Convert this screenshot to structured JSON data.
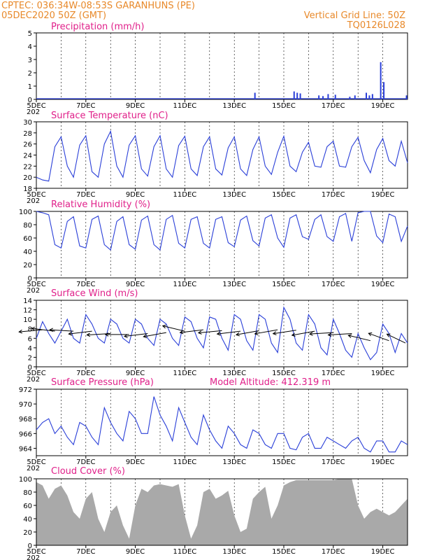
{
  "header": {
    "line1_left": "CPTEC:   036:34W-08:53S   GARANHUNS (PE)",
    "line2_left": "05DEC2020 50Z (GMT)",
    "line1_right": "Vertical Grid Line: 50Z",
    "line2_right": "TQ0126L028"
  },
  "colors": {
    "header": "#e8892a",
    "title": "#e0208a",
    "series": "#2a3fd8",
    "cloud": "#a9a9a9",
    "arrow": "#000000"
  },
  "x_axis": {
    "start": "2020-12-05",
    "end": "2020-12-20",
    "tick_labels": [
      "5DEC",
      "7DEC",
      "9DEC",
      "11DEC",
      "13DEC",
      "15DEC",
      "17DEC",
      "19DEC"
    ],
    "tick_dates": [
      "2020-12-05",
      "2020-12-07",
      "2020-12-09",
      "2020-12-11",
      "2020-12-13",
      "2020-12-15",
      "2020-12-17",
      "2020-12-19"
    ],
    "truncated_year_label": "202"
  },
  "chart_data": [
    {
      "type": "bar",
      "title": "Precipitation (mm/h)",
      "ylim": [
        0,
        5
      ],
      "yticks": [
        0,
        1,
        2,
        3,
        4,
        5
      ],
      "grid": "vertical dashed",
      "x": [
        "2020-12-13 20:00",
        "2020-12-15 10:00",
        "2020-12-15 13:00",
        "2020-12-15 16:00",
        "2020-12-16 10:00",
        "2020-12-16 14:00",
        "2020-12-16 19:00",
        "2020-12-17 02:00",
        "2020-12-17 16:00",
        "2020-12-17 21:00",
        "2020-12-18 08:00",
        "2020-12-18 11:00",
        "2020-12-18 14:00",
        "2020-12-18 22:00",
        "2020-12-19 01:00",
        "2020-12-19 23:00"
      ],
      "values": [
        0.5,
        0.6,
        0.5,
        0.45,
        0.3,
        0.25,
        0.4,
        0.35,
        0.2,
        0.3,
        0.5,
        0.3,
        0.4,
        2.8,
        1.3,
        0.3
      ]
    },
    {
      "type": "line",
      "title": "Surface Temperature (nC)",
      "ylim": [
        18,
        30
      ],
      "yticks": [
        18,
        20,
        22,
        24,
        26,
        28,
        30
      ],
      "x": [
        "2020-12-05 00:00",
        "2020-12-05 06:00",
        "2020-12-05 12:00",
        "2020-12-05 18:00",
        "2020-12-06 00:00",
        "2020-12-06 06:00",
        "2020-12-06 12:00",
        "2020-12-06 18:00",
        "2020-12-07 00:00",
        "2020-12-07 06:00",
        "2020-12-07 12:00",
        "2020-12-07 18:00",
        "2020-12-08 00:00",
        "2020-12-08 06:00",
        "2020-12-08 12:00",
        "2020-12-08 18:00",
        "2020-12-09 00:00",
        "2020-12-09 06:00",
        "2020-12-09 12:00",
        "2020-12-09 18:00",
        "2020-12-10 00:00",
        "2020-12-10 06:00",
        "2020-12-10 12:00",
        "2020-12-10 18:00",
        "2020-12-11 00:00",
        "2020-12-11 06:00",
        "2020-12-11 12:00",
        "2020-12-11 18:00",
        "2020-12-12 00:00",
        "2020-12-12 06:00",
        "2020-12-12 12:00",
        "2020-12-12 18:00",
        "2020-12-13 00:00",
        "2020-12-13 06:00",
        "2020-12-13 12:00",
        "2020-12-13 18:00",
        "2020-12-14 00:00",
        "2020-12-14 06:00",
        "2020-12-14 12:00",
        "2020-12-14 18:00",
        "2020-12-15 00:00",
        "2020-12-15 06:00",
        "2020-12-15 12:00",
        "2020-12-15 18:00",
        "2020-12-16 00:00",
        "2020-12-16 06:00",
        "2020-12-16 12:00",
        "2020-12-16 18:00",
        "2020-12-17 00:00",
        "2020-12-17 06:00",
        "2020-12-17 12:00",
        "2020-12-17 18:00",
        "2020-12-18 00:00",
        "2020-12-18 06:00",
        "2020-12-18 12:00",
        "2020-12-18 18:00",
        "2020-12-19 00:00",
        "2020-12-19 06:00",
        "2020-12-19 12:00",
        "2020-12-19 18:00",
        "2020-12-20 00:00"
      ],
      "values": [
        20,
        19.5,
        19.3,
        25.5,
        27.3,
        22,
        20,
        25.8,
        27.5,
        21,
        20,
        26,
        28.3,
        22,
        20,
        25.8,
        27.5,
        21.5,
        20.2,
        25.5,
        27.5,
        21.5,
        20,
        25.7,
        27.4,
        21.5,
        20.3,
        25.5,
        27.3,
        21.5,
        20.4,
        25.3,
        27.3,
        21.5,
        20.3,
        25,
        27.3,
        22,
        20.5,
        24.5,
        27.4,
        22,
        21,
        24.5,
        26.3,
        22,
        21.8,
        25.5,
        26.5,
        22,
        21.8,
        25.5,
        27.2,
        23,
        20.8,
        25,
        27,
        23,
        22,
        26.5,
        22.6
      ]
    },
    {
      "type": "line",
      "title": "Relative Humidity (%)",
      "ylim": [
        0,
        100
      ],
      "yticks": [
        0,
        20,
        40,
        60,
        80,
        100
      ],
      "x": [
        "2020-12-05 00:00",
        "2020-12-05 06:00",
        "2020-12-05 12:00",
        "2020-12-05 18:00",
        "2020-12-06 00:00",
        "2020-12-06 06:00",
        "2020-12-06 12:00",
        "2020-12-06 18:00",
        "2020-12-07 00:00",
        "2020-12-07 06:00",
        "2020-12-07 12:00",
        "2020-12-07 18:00",
        "2020-12-08 00:00",
        "2020-12-08 06:00",
        "2020-12-08 12:00",
        "2020-12-08 18:00",
        "2020-12-09 00:00",
        "2020-12-09 06:00",
        "2020-12-09 12:00",
        "2020-12-09 18:00",
        "2020-12-10 00:00",
        "2020-12-10 06:00",
        "2020-12-10 12:00",
        "2020-12-10 18:00",
        "2020-12-11 00:00",
        "2020-12-11 06:00",
        "2020-12-11 12:00",
        "2020-12-11 18:00",
        "2020-12-12 00:00",
        "2020-12-12 06:00",
        "2020-12-12 12:00",
        "2020-12-12 18:00",
        "2020-12-13 00:00",
        "2020-12-13 06:00",
        "2020-12-13 12:00",
        "2020-12-13 18:00",
        "2020-12-14 00:00",
        "2020-12-14 06:00",
        "2020-12-14 12:00",
        "2020-12-14 18:00",
        "2020-12-15 00:00",
        "2020-12-15 06:00",
        "2020-12-15 12:00",
        "2020-12-15 18:00",
        "2020-12-16 00:00",
        "2020-12-16 06:00",
        "2020-12-16 12:00",
        "2020-12-16 18:00",
        "2020-12-17 00:00",
        "2020-12-17 06:00",
        "2020-12-17 12:00",
        "2020-12-17 18:00",
        "2020-12-18 00:00",
        "2020-12-18 06:00",
        "2020-12-18 12:00",
        "2020-12-18 18:00",
        "2020-12-19 00:00",
        "2020-12-19 06:00",
        "2020-12-19 12:00",
        "2020-12-19 18:00",
        "2020-12-20 00:00"
      ],
      "values": [
        100,
        98,
        95,
        50,
        45,
        85,
        92,
        48,
        45,
        88,
        93,
        50,
        42,
        85,
        92,
        50,
        43,
        87,
        93,
        50,
        42,
        88,
        94,
        52,
        45,
        88,
        92,
        52,
        45,
        88,
        92,
        53,
        47,
        87,
        93,
        56,
        48,
        90,
        95,
        60,
        46,
        90,
        95,
        62,
        58,
        88,
        95,
        62,
        55,
        92,
        97,
        55,
        98,
        100,
        100,
        63,
        53,
        96,
        92,
        55,
        78
      ]
    },
    {
      "type": "line",
      "title": "Surface Wind (m/s)",
      "ylim": [
        0,
        14
      ],
      "yticks": [
        0,
        2,
        4,
        6,
        8,
        10,
        12,
        14
      ],
      "x": [
        "2020-12-05 00:00",
        "2020-12-05 06:00",
        "2020-12-05 12:00",
        "2020-12-05 18:00",
        "2020-12-06 00:00",
        "2020-12-06 06:00",
        "2020-12-06 12:00",
        "2020-12-06 18:00",
        "2020-12-07 00:00",
        "2020-12-07 06:00",
        "2020-12-07 12:00",
        "2020-12-07 18:00",
        "2020-12-08 00:00",
        "2020-12-08 06:00",
        "2020-12-08 12:00",
        "2020-12-08 18:00",
        "2020-12-09 00:00",
        "2020-12-09 06:00",
        "2020-12-09 12:00",
        "2020-12-09 18:00",
        "2020-12-10 00:00",
        "2020-12-10 06:00",
        "2020-12-10 12:00",
        "2020-12-10 18:00",
        "2020-12-11 00:00",
        "2020-12-11 06:00",
        "2020-12-11 12:00",
        "2020-12-11 18:00",
        "2020-12-12 00:00",
        "2020-12-12 06:00",
        "2020-12-12 12:00",
        "2020-12-12 18:00",
        "2020-12-13 00:00",
        "2020-12-13 06:00",
        "2020-12-13 12:00",
        "2020-12-13 18:00",
        "2020-12-14 00:00",
        "2020-12-14 06:00",
        "2020-12-14 12:00",
        "2020-12-14 18:00",
        "2020-12-15 00:00",
        "2020-12-15 06:00",
        "2020-12-15 12:00",
        "2020-12-15 18:00",
        "2020-12-16 00:00",
        "2020-12-16 06:00",
        "2020-12-16 12:00",
        "2020-12-16 18:00",
        "2020-12-17 00:00",
        "2020-12-17 06:00",
        "2020-12-17 12:00",
        "2020-12-17 18:00",
        "2020-12-18 00:00",
        "2020-12-18 06:00",
        "2020-12-18 12:00",
        "2020-12-18 18:00",
        "2020-12-19 00:00",
        "2020-12-19 06:00",
        "2020-12-19 12:00",
        "2020-12-19 18:00",
        "2020-12-20 00:00"
      ],
      "values": [
        6,
        9.5,
        7,
        5,
        7.5,
        10,
        6,
        5,
        11,
        9,
        6,
        5,
        10,
        9,
        6,
        5,
        10,
        9,
        6,
        4.5,
        10,
        9,
        6,
        4.5,
        10.5,
        9.5,
        6,
        4,
        10.5,
        10,
        6,
        3.5,
        11,
        10,
        5.5,
        3.5,
        11,
        10,
        5,
        3,
        12.5,
        10,
        5,
        3.5,
        11,
        9,
        4,
        2.5,
        10,
        7,
        3.5,
        2,
        7,
        4,
        1.5,
        3,
        9,
        7,
        3,
        7,
        5
      ],
      "arrows": [
        {
          "x": "2020-12-05 06:00",
          "speed": 7.8,
          "dir_x": -1,
          "dir_y": 0.15
        },
        {
          "x": "2020-12-05 18:00",
          "speed": 7.5,
          "dir_x": -1,
          "dir_y": -0.2
        },
        {
          "x": "2020-12-06 12:00",
          "speed": 7.5,
          "dir_x": -1,
          "dir_y": -0.1
        },
        {
          "x": "2020-12-07 06:00",
          "speed": 7.5,
          "dir_x": -1,
          "dir_y": 0.2
        },
        {
          "x": "2020-12-08 00:00",
          "speed": 7.0,
          "dir_x": -1,
          "dir_y": 0.1
        },
        {
          "x": "2020-12-08 18:00",
          "speed": 6.8,
          "dir_x": -1,
          "dir_y": 0
        },
        {
          "x": "2020-12-09 12:00",
          "speed": 7.0,
          "dir_x": -1,
          "dir_y": 0.2
        },
        {
          "x": "2020-12-10 06:00",
          "speed": 7.2,
          "dir_x": -1,
          "dir_y": 0.3
        },
        {
          "x": "2020-12-11 00:00",
          "speed": 7.5,
          "dir_x": -1,
          "dir_y": -0.4
        },
        {
          "x": "2020-12-11 18:00",
          "speed": 7.8,
          "dir_x": -1,
          "dir_y": 0.2
        },
        {
          "x": "2020-12-12 12:00",
          "speed": 7.6,
          "dir_x": -1,
          "dir_y": 0.15
        },
        {
          "x": "2020-12-13 06:00",
          "speed": 7.5,
          "dir_x": -1,
          "dir_y": 0.2
        },
        {
          "x": "2020-12-14 00:00",
          "speed": 7.6,
          "dir_x": -1,
          "dir_y": 0.3
        },
        {
          "x": "2020-12-14 18:00",
          "speed": 7.8,
          "dir_x": -1,
          "dir_y": 0.3
        },
        {
          "x": "2020-12-15 12:00",
          "speed": 7.7,
          "dir_x": -1,
          "dir_y": 0.25
        },
        {
          "x": "2020-12-16 06:00",
          "speed": 7.5,
          "dir_x": -1,
          "dir_y": 0.3
        },
        {
          "x": "2020-12-17 00:00",
          "speed": 7.2,
          "dir_x": -1,
          "dir_y": 0.1
        },
        {
          "x": "2020-12-17 18:00",
          "speed": 7.0,
          "dir_x": -1,
          "dir_y": 0.1
        },
        {
          "x": "2020-12-18 12:00",
          "speed": 5.5,
          "dir_x": -1,
          "dir_y": -0.4
        },
        {
          "x": "2020-12-19 06:00",
          "speed": 5.5,
          "dir_x": -1,
          "dir_y": -0.6
        },
        {
          "x": "2020-12-19 22:00",
          "speed": 5.0,
          "dir_x": -1,
          "dir_y": -0.8
        }
      ]
    },
    {
      "type": "line",
      "title": "Surface Pressure (hPa)",
      "annotation": "Model Altitude: 412.319 m",
      "ylim": [
        963,
        972
      ],
      "yticks": [
        964,
        966,
        968,
        970,
        972
      ],
      "x": [
        "2020-12-05 00:00",
        "2020-12-05 06:00",
        "2020-12-05 12:00",
        "2020-12-05 18:00",
        "2020-12-06 00:00",
        "2020-12-06 06:00",
        "2020-12-06 12:00",
        "2020-12-06 18:00",
        "2020-12-07 00:00",
        "2020-12-07 06:00",
        "2020-12-07 12:00",
        "2020-12-07 18:00",
        "2020-12-08 00:00",
        "2020-12-08 06:00",
        "2020-12-08 12:00",
        "2020-12-08 18:00",
        "2020-12-09 00:00",
        "2020-12-09 06:00",
        "2020-12-09 12:00",
        "2020-12-09 18:00",
        "2020-12-10 00:00",
        "2020-12-10 06:00",
        "2020-12-10 12:00",
        "2020-12-10 18:00",
        "2020-12-11 00:00",
        "2020-12-11 06:00",
        "2020-12-11 12:00",
        "2020-12-11 18:00",
        "2020-12-12 00:00",
        "2020-12-12 06:00",
        "2020-12-12 12:00",
        "2020-12-12 18:00",
        "2020-12-13 00:00",
        "2020-12-13 06:00",
        "2020-12-13 12:00",
        "2020-12-13 18:00",
        "2020-12-14 00:00",
        "2020-12-14 06:00",
        "2020-12-14 12:00",
        "2020-12-14 18:00",
        "2020-12-15 00:00",
        "2020-12-15 06:00",
        "2020-12-15 12:00",
        "2020-12-15 18:00",
        "2020-12-16 00:00",
        "2020-12-16 06:00",
        "2020-12-16 12:00",
        "2020-12-16 18:00",
        "2020-12-17 00:00",
        "2020-12-17 06:00",
        "2020-12-17 12:00",
        "2020-12-17 18:00",
        "2020-12-18 00:00",
        "2020-12-18 06:00",
        "2020-12-18 12:00",
        "2020-12-18 18:00",
        "2020-12-19 00:00",
        "2020-12-19 06:00",
        "2020-12-19 12:00",
        "2020-12-19 18:00",
        "2020-12-20 00:00"
      ],
      "values": [
        966.5,
        967.5,
        968,
        966,
        967,
        965.5,
        964.5,
        967.5,
        967,
        965.5,
        964.5,
        969.5,
        967.5,
        966,
        965,
        969,
        968,
        966,
        966,
        971,
        968.5,
        967,
        965,
        969.5,
        967.5,
        965.5,
        964.5,
        968.5,
        966.5,
        965,
        964,
        967,
        966,
        964.5,
        964,
        966.5,
        966,
        964.5,
        964,
        966,
        966,
        964,
        963.8,
        965.5,
        966,
        964,
        964,
        965.5,
        965,
        964.5,
        964,
        965,
        965.5,
        964,
        963.5,
        965,
        965,
        963.5,
        963.5,
        965,
        964.5
      ]
    },
    {
      "type": "area",
      "title": "Cloud Cover (%)",
      "ylim": [
        0,
        100
      ],
      "yticks": [
        0,
        20,
        40,
        60,
        80,
        100
      ],
      "x": [
        "2020-12-05 00:00",
        "2020-12-05 06:00",
        "2020-12-05 12:00",
        "2020-12-05 18:00",
        "2020-12-06 00:00",
        "2020-12-06 06:00",
        "2020-12-06 12:00",
        "2020-12-06 18:00",
        "2020-12-07 00:00",
        "2020-12-07 06:00",
        "2020-12-07 12:00",
        "2020-12-07 18:00",
        "2020-12-08 00:00",
        "2020-12-08 06:00",
        "2020-12-08 12:00",
        "2020-12-08 18:00",
        "2020-12-09 00:00",
        "2020-12-09 06:00",
        "2020-12-09 12:00",
        "2020-12-09 18:00",
        "2020-12-10 00:00",
        "2020-12-10 06:00",
        "2020-12-10 12:00",
        "2020-12-10 18:00",
        "2020-12-11 00:00",
        "2020-12-11 06:00",
        "2020-12-11 12:00",
        "2020-12-11 18:00",
        "2020-12-12 00:00",
        "2020-12-12 06:00",
        "2020-12-12 12:00",
        "2020-12-12 18:00",
        "2020-12-13 00:00",
        "2020-12-13 06:00",
        "2020-12-13 12:00",
        "2020-12-13 18:00",
        "2020-12-14 00:00",
        "2020-12-14 06:00",
        "2020-12-14 12:00",
        "2020-12-14 18:00",
        "2020-12-15 00:00",
        "2020-12-15 06:00",
        "2020-12-15 12:00",
        "2020-12-15 18:00",
        "2020-12-16 00:00",
        "2020-12-16 06:00",
        "2020-12-16 12:00",
        "2020-12-16 18:00",
        "2020-12-17 00:00",
        "2020-12-17 06:00",
        "2020-12-17 12:00",
        "2020-12-17 18:00",
        "2020-12-18 00:00",
        "2020-12-18 06:00",
        "2020-12-18 12:00",
        "2020-12-18 18:00",
        "2020-12-19 00:00",
        "2020-12-19 06:00",
        "2020-12-19 12:00",
        "2020-12-19 18:00",
        "2020-12-20 00:00"
      ],
      "values": [
        95,
        90,
        70,
        85,
        90,
        75,
        50,
        40,
        70,
        80,
        40,
        20,
        50,
        60,
        30,
        10,
        60,
        85,
        80,
        90,
        92,
        90,
        88,
        92,
        45,
        10,
        30,
        80,
        85,
        70,
        75,
        82,
        45,
        20,
        25,
        70,
        80,
        88,
        40,
        60,
        90,
        95,
        98,
        98,
        98,
        98,
        98,
        98,
        98,
        100,
        100,
        100,
        60,
        40,
        50,
        55,
        50,
        45,
        50,
        60,
        70
      ]
    }
  ]
}
